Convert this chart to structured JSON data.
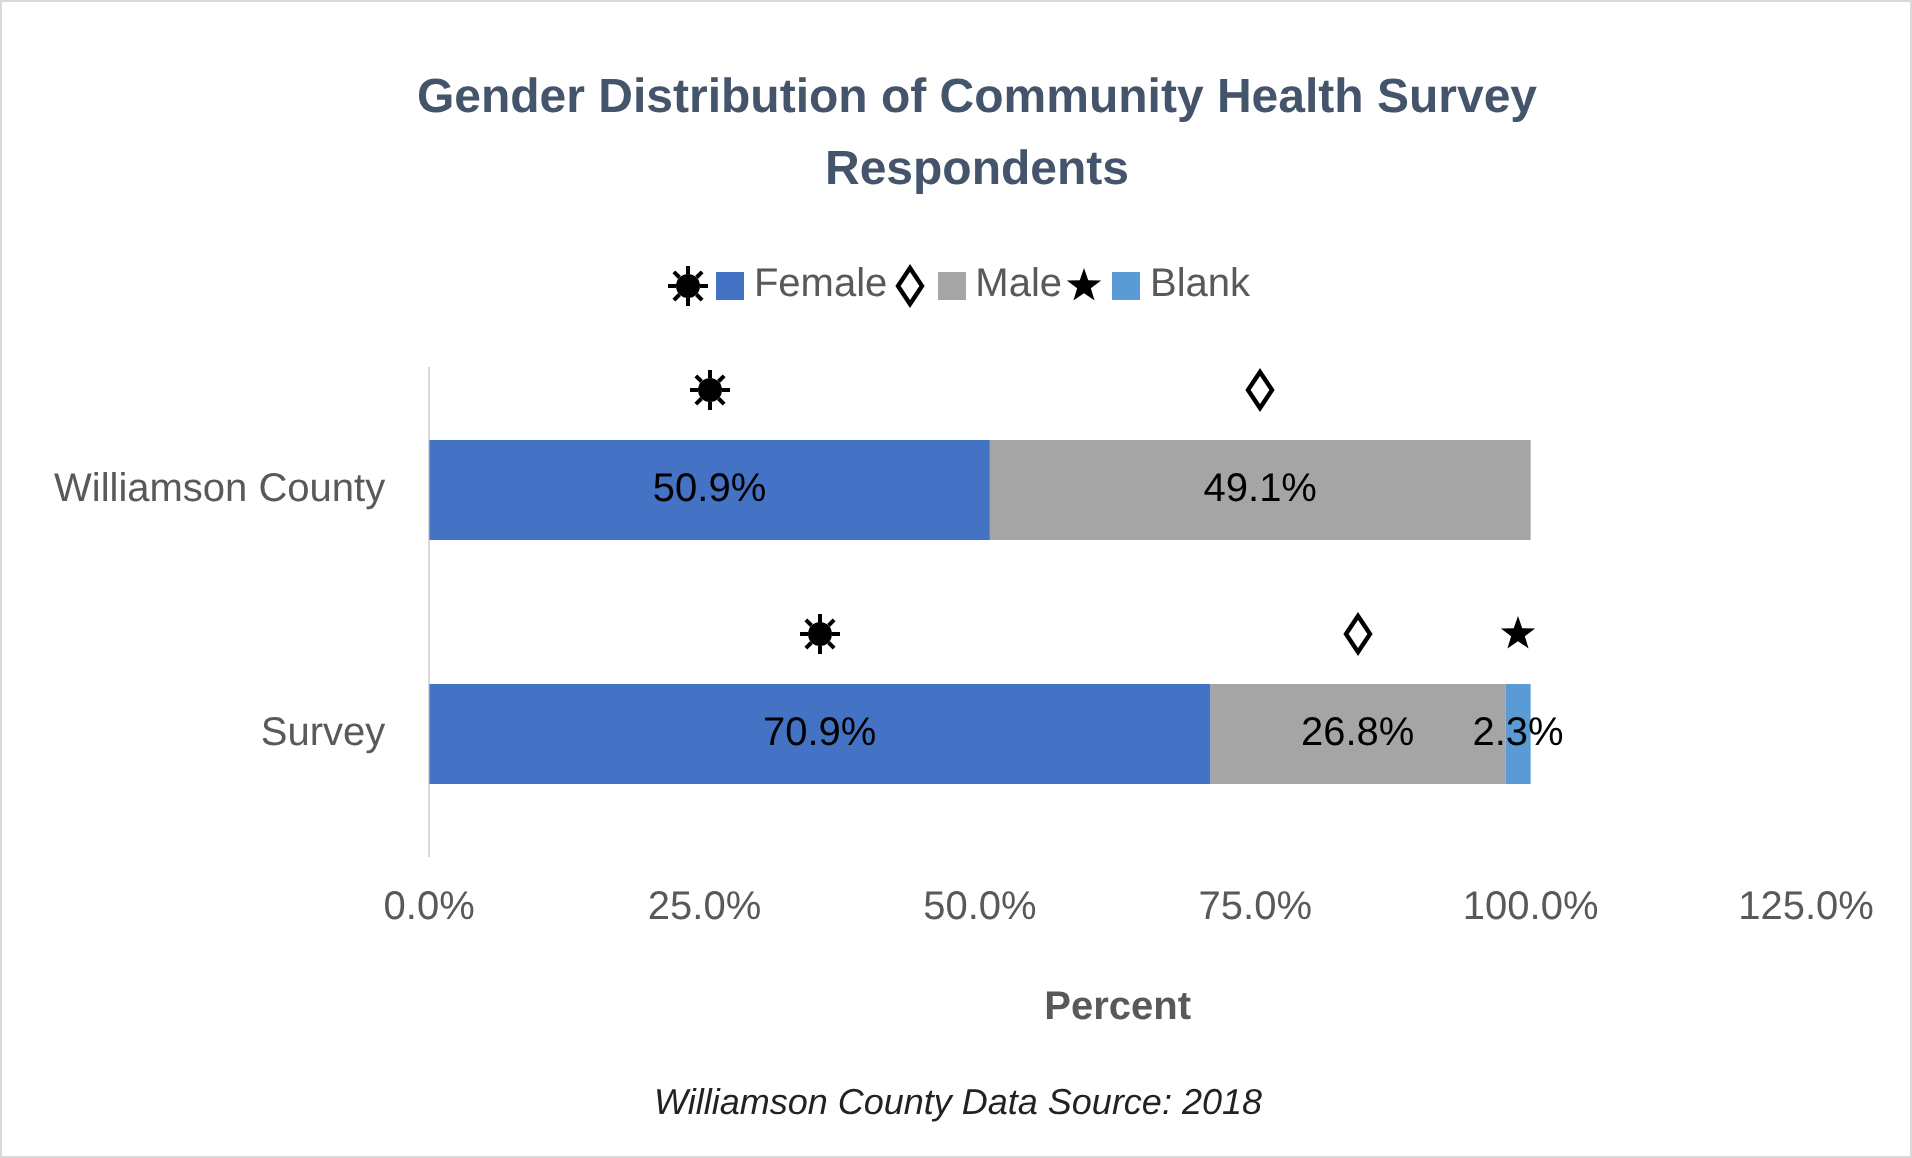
{
  "chart_data": {
    "type": "bar",
    "orientation": "horizontal",
    "stacked": true,
    "title": "Gender Distribution of Community Health Survey Respondents",
    "xlabel": "Percent",
    "categories": [
      "Williamson County",
      "Survey"
    ],
    "series": [
      {
        "name": "Female",
        "color": "#4472c4",
        "values": [
          50.9,
          70.9
        ],
        "value_labels": [
          "50.9%",
          "70.9%"
        ]
      },
      {
        "name": "Male",
        "color": "#a5a5a5",
        "values": [
          49.1,
          26.8
        ],
        "value_labels": [
          "49.1%",
          "26.8%"
        ]
      },
      {
        "name": "Blank",
        "color": "#5b9bd5",
        "values": [
          null,
          2.3
        ],
        "value_labels": [
          null,
          "2.3%"
        ]
      }
    ],
    "xlim": [
      0,
      125
    ],
    "xticks": [
      {
        "value": 0,
        "label": "0.0%"
      },
      {
        "value": 25,
        "label": "25.0%"
      },
      {
        "value": 50,
        "label": "50.0%"
      },
      {
        "value": 75,
        "label": "75.0%"
      },
      {
        "value": 100,
        "label": "100.0%"
      },
      {
        "value": 125,
        "label": "125.0%"
      }
    ],
    "grid": false,
    "legend": "top",
    "annotations": [
      "Williamson County Data Source: 2018"
    ]
  }
}
